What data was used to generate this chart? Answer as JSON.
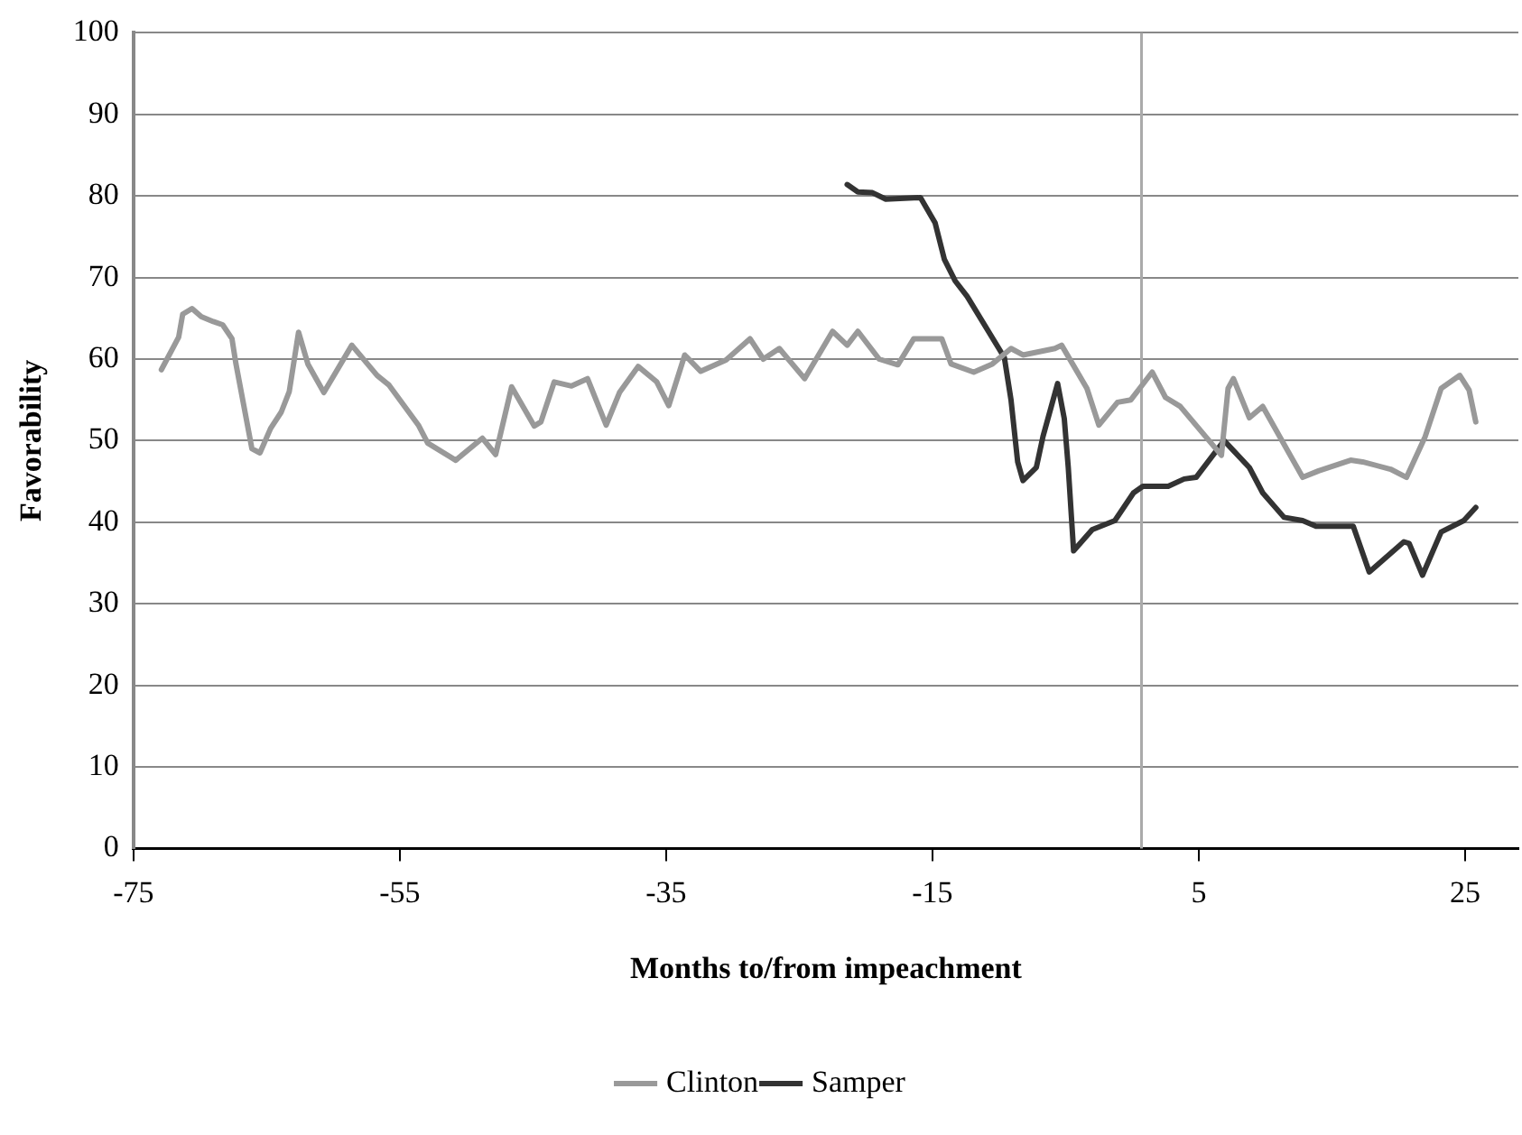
{
  "chart_data": {
    "type": "line",
    "xlabel": "Months to/from impeachment",
    "ylabel": "Favorability",
    "xlim": [
      -75,
      29
    ],
    "xticks": [
      -75,
      -55,
      -35,
      -15,
      5,
      25
    ],
    "ylim": [
      0,
      100
    ],
    "yticks": [
      0,
      10,
      20,
      30,
      40,
      50,
      60,
      70,
      80,
      90,
      100
    ],
    "grid": "y",
    "legend": "bottom",
    "marker": "none",
    "line_style": "solid",
    "ref_lines": [
      {
        "axis": "x",
        "value": 0.7,
        "color": "#aaaaaa"
      }
    ],
    "series": [
      {
        "name": "Clinton",
        "color": "#999999",
        "x": [
          -72.9,
          -71.6,
          -71.3,
          -70.6,
          -69.9,
          -69.0,
          -68.3,
          -67.6,
          -67.3,
          -66.1,
          -65.5,
          -64.7,
          -63.9,
          -63.3,
          -62.6,
          -61.9,
          -60.7,
          -58.6,
          -56.7,
          -55.8,
          -53.6,
          -52.9,
          -50.8,
          -48.8,
          -47.8,
          -46.6,
          -44.9,
          -44.4,
          -43.4,
          -42.1,
          -40.9,
          -39.5,
          -38.5,
          -37.1,
          -35.7,
          -34.8,
          -33.6,
          -32.4,
          -30.5,
          -28.7,
          -27.7,
          -26.5,
          -24.6,
          -22.5,
          -21.4,
          -20.6,
          -19.0,
          -17.6,
          -16.4,
          -14.3,
          -13.6,
          -11.9,
          -10.5,
          -9.1,
          -8.2,
          -5.8,
          -5.3,
          -3.4,
          -2.5,
          -1.1,
          -0.1,
          1.5,
          2.5,
          3.6,
          6.7,
          7.2,
          7.6,
          8.8,
          9.8,
          12.8,
          14.0,
          16.4,
          17.3,
          19.4,
          20.6,
          22.0,
          23.2,
          24.6,
          25.3,
          25.8
        ],
        "values": [
          58.7,
          62.7,
          65.5,
          66.2,
          65.2,
          64.6,
          64.2,
          62.5,
          59.4,
          49.0,
          48.5,
          51.5,
          53.5,
          56.0,
          63.3,
          59.4,
          55.9,
          61.7,
          58.0,
          56.8,
          51.9,
          49.7,
          47.6,
          50.3,
          48.3,
          56.6,
          51.8,
          52.3,
          57.2,
          56.7,
          57.6,
          51.9,
          55.9,
          59.1,
          57.2,
          54.3,
          60.5,
          58.5,
          59.9,
          62.5,
          60.0,
          61.3,
          57.6,
          63.4,
          61.7,
          63.4,
          60.0,
          59.3,
          62.5,
          62.5,
          59.4,
          58.4,
          59.4,
          61.3,
          60.5,
          61.3,
          61.7,
          56.4,
          51.9,
          54.7,
          55.0,
          58.4,
          55.3,
          54.2,
          48.2,
          56.4,
          57.6,
          52.8,
          54.2,
          45.5,
          46.3,
          47.6,
          47.4,
          46.5,
          45.5,
          50.5,
          56.4,
          58.0,
          56.2,
          52.3
        ]
      },
      {
        "name": "Samper",
        "color": "#333333",
        "x": [
          -21.4,
          -20.6,
          -19.5,
          -18.5,
          -15.9,
          -14.8,
          -14.1,
          -13.3,
          -12.4,
          -9.6,
          -9.1,
          -8.6,
          -8.2,
          -7.2,
          -6.7,
          -5.6,
          -5.1,
          -4.8,
          -4.4,
          -3.0,
          -1.3,
          0.1,
          0.8,
          2.7,
          3.9,
          4.8,
          6.9,
          8.8,
          9.8,
          11.4,
          12.8,
          13.8,
          16.6,
          17.8,
          20.4,
          20.8,
          21.8,
          23.2,
          24.9,
          25.8
        ],
        "values": [
          81.4,
          80.5,
          80.4,
          79.6,
          79.8,
          76.7,
          72.2,
          69.6,
          67.7,
          60.2,
          55.0,
          47.4,
          45.1,
          46.7,
          50.5,
          57.0,
          52.7,
          46.7,
          36.5,
          39.1,
          40.2,
          43.6,
          44.4,
          44.4,
          45.3,
          45.5,
          50.0,
          46.7,
          43.6,
          40.6,
          40.2,
          39.5,
          39.5,
          33.9,
          37.6,
          37.4,
          33.5,
          38.8,
          40.2,
          41.8
        ]
      }
    ]
  }
}
